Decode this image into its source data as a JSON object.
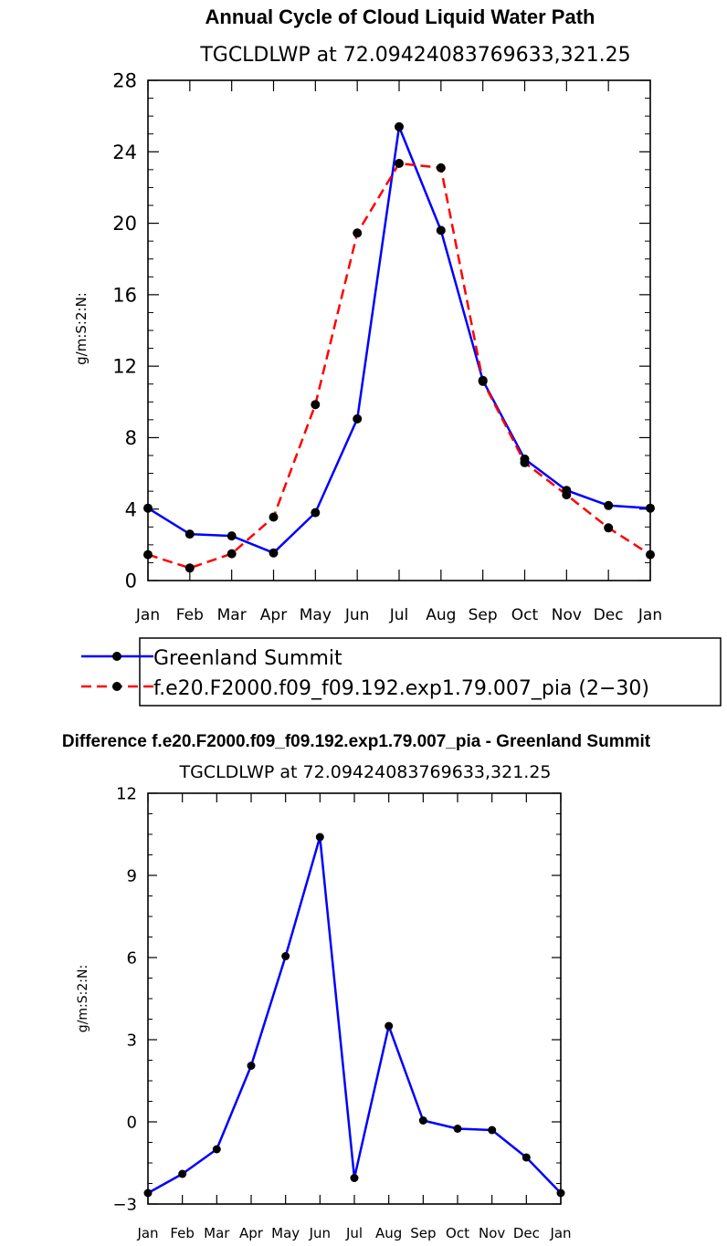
{
  "chart_data": [
    {
      "type": "line",
      "title": "Annual Cycle of Cloud Liquid Water Path",
      "subtitle": "TGCLDLWP  at  72.09424083769633,321.25",
      "ylabel": "g/m:S:2:N:",
      "categories": [
        "Jan",
        "Feb",
        "Mar",
        "Apr",
        "May",
        "Jun",
        "Jul",
        "Aug",
        "Sep",
        "Oct",
        "Nov",
        "Dec",
        "Jan"
      ],
      "ylim": [
        0,
        28
      ],
      "yticks": [
        "0",
        "4",
        "8",
        "12",
        "16",
        "20",
        "24",
        "28"
      ],
      "ytick_values": [
        0,
        4,
        8,
        12,
        16,
        20,
        24,
        28
      ],
      "series": [
        {
          "name": "Greenland Summit",
          "color": "#0000ff",
          "dash": "solid",
          "values": [
            4.05,
            2.6,
            2.5,
            1.55,
            3.8,
            9.05,
            25.4,
            19.6,
            11.2,
            6.8,
            5.05,
            4.2,
            4.05
          ]
        },
        {
          "name": "f.e20.F2000.f09_f09.192.exp1.79.007_pia (2−30)",
          "color": "#ff0000",
          "dash": "dashed",
          "values": [
            1.45,
            0.7,
            1.5,
            3.55,
            9.85,
            19.45,
            23.35,
            23.1,
            11.15,
            6.6,
            4.8,
            2.95,
            1.45
          ]
        }
      ]
    },
    {
      "type": "line",
      "title": "Difference f.e20.F2000.f09_f09.192.exp1.79.007_pia - Greenland Summit",
      "subtitle": "TGCLDLWP  at  72.09424083769633,321.25",
      "ylabel": "g/m:S:2:N:",
      "categories": [
        "Jan",
        "Feb",
        "Mar",
        "Apr",
        "May",
        "Jun",
        "Jul",
        "Aug",
        "Sep",
        "Oct",
        "Nov",
        "Dec",
        "Jan"
      ],
      "ylim": [
        -3,
        12
      ],
      "yticks": [
        "−3",
        "0",
        "3",
        "6",
        "9",
        "12"
      ],
      "ytick_values": [
        -3,
        0,
        3,
        6,
        9,
        12
      ],
      "series": [
        {
          "name": "Difference",
          "color": "#0000ff",
          "dash": "solid",
          "values": [
            -2.6,
            -1.9,
            -1.0,
            2.05,
            6.05,
            10.4,
            -2.05,
            3.5,
            0.05,
            -0.25,
            -0.3,
            -1.3,
            -2.6
          ]
        }
      ]
    }
  ]
}
